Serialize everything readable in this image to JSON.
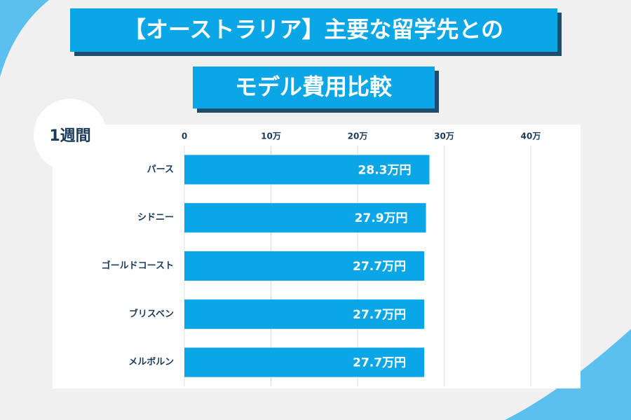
{
  "chart_data": {
    "type": "bar",
    "orientation": "horizontal",
    "title": "【オーストラリア】主要な留学先との",
    "subtitle": "モデル費用比較",
    "annotation": "1週間",
    "categories": [
      "パース",
      "シドニー",
      "ゴールドコースト",
      "ブリスベン",
      "メルボルン"
    ],
    "values": [
      28.3,
      27.9,
      27.7,
      27.7,
      27.7
    ],
    "value_labels": [
      "28.3万円",
      "27.9万円",
      "27.7万円",
      "27.7万円",
      "27.7万円"
    ],
    "color": "#0aa6e6",
    "xlim": [
      0,
      40
    ],
    "xticks": [
      0,
      {
        "value": 10,
        "label": "10万"
      },
      {
        "value": 20,
        "label": "20万"
      },
      {
        "value": 30,
        "label": "30万"
      },
      {
        "value": 40,
        "label": "40万"
      }
    ],
    "grid": true
  }
}
